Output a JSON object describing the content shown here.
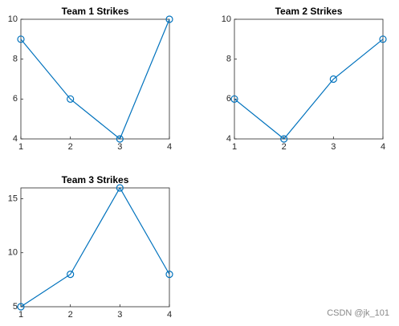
{
  "chart_data": [
    {
      "type": "line",
      "title": "Team 1 Strikes",
      "x": [
        1,
        2,
        3,
        4
      ],
      "values": [
        9,
        6,
        4,
        10
      ],
      "color": "#0072bd",
      "xlim": [
        1,
        4
      ],
      "xticks": [
        1,
        2,
        3,
        4
      ],
      "ylim": [
        4,
        10
      ],
      "yticks": [
        4,
        6,
        8,
        10
      ]
    },
    {
      "type": "line",
      "title": "Team 2 Strikes",
      "x": [
        1,
        2,
        3,
        4
      ],
      "values": [
        6,
        4,
        7,
        9
      ],
      "color": "#0072bd",
      "xlim": [
        1,
        4
      ],
      "xticks": [
        1,
        2,
        3,
        4
      ],
      "ylim": [
        4,
        10
      ],
      "yticks": [
        4,
        6,
        8,
        10
      ]
    },
    {
      "type": "line",
      "title": "Team 3 Strikes",
      "x": [
        1,
        2,
        3,
        4
      ],
      "values": [
        5,
        8,
        16,
        8
      ],
      "color": "#0072bd",
      "xlim": [
        1,
        4
      ],
      "xticks": [
        1,
        2,
        3,
        4
      ],
      "ylim": [
        5,
        16
      ],
      "yticks": [
        5,
        10,
        15
      ]
    }
  ],
  "watermark": "CSDN @jk_101"
}
